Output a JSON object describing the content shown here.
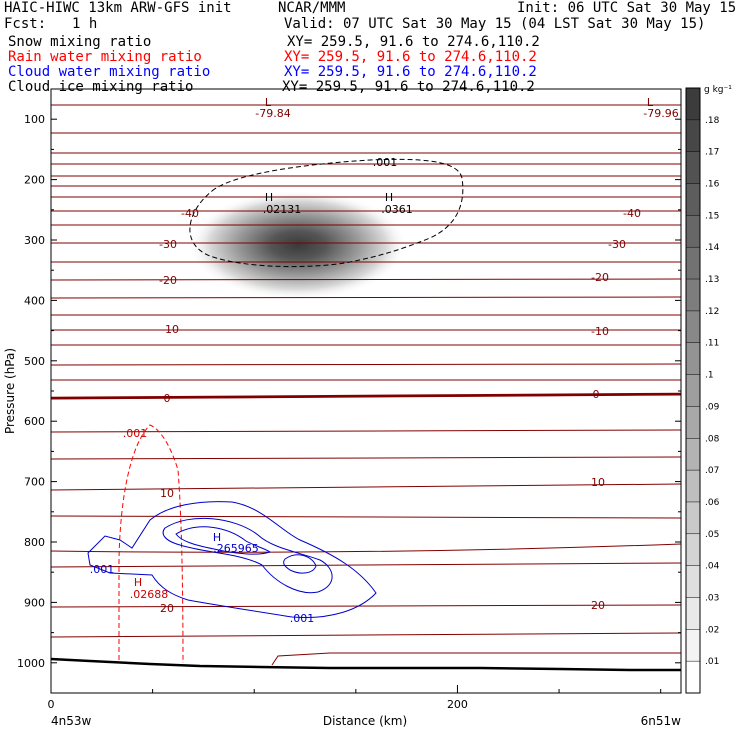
{
  "header": {
    "model": "HAIC-HIWC 13km ARW-GFS init",
    "org": "NCAR/MMM",
    "init": "Init: 06 UTC Sat 30 May 15",
    "fcst_label": "Fcst:",
    "fcst_value": "1 h",
    "valid": "Valid: 07 UTC Sat 30 May 15 (04 LST Sat 30 May 15)",
    "fields": [
      {
        "name": "Snow mixing ratio",
        "xy": "XY= 259.5, 91.6 to 274.6,110.2",
        "color": "#000000"
      },
      {
        "name": "Rain water mixing ratio",
        "xy": "XY= 259.5, 91.6 to 274.6,110.2",
        "color": "#ff0000"
      },
      {
        "name": "Cloud water mixing ratio",
        "xy": "XY= 259.5, 91.6 to 274.6,110.2",
        "color": "#0000ff"
      },
      {
        "name": "Cloud ice mixing ratio",
        "xy": "XY= 259.5, 91.6 to 274.6,110.2",
        "color": "#000000"
      }
    ]
  },
  "colorbar": {
    "unit": "g kg⁻¹",
    "ticks": [
      ".01",
      ".02",
      ".03",
      ".04",
      ".05",
      ".06",
      ".07",
      ".08",
      ".09",
      ".1",
      ".11",
      ".12",
      ".13",
      ".14",
      ".15",
      ".16",
      ".17",
      ".18"
    ]
  },
  "chart_data": {
    "type": "heatmap",
    "xlabel": "Distance (km)",
    "ylabel": "Pressure (hPa)",
    "x_ticks": [
      "0",
      "200"
    ],
    "y_ticks": [
      "100",
      "200",
      "300",
      "400",
      "500",
      "600",
      "700",
      "800",
      "900",
      "1000"
    ],
    "xlim": [
      0,
      310
    ],
    "ylim": [
      1050,
      50
    ],
    "y_scale": "linear",
    "left_label": "4n53w",
    "right_label": "6n51w",
    "temperature_labels": [
      "-40",
      "-30",
      "-20",
      "-10",
      "0",
      "10",
      "20"
    ],
    "snow_max_g_per_kg": 0.18,
    "highs": [
      {
        "label": "H",
        "value": ".02131",
        "color": "#000000"
      },
      {
        "label": "H",
        "value": ".0361",
        "color": "#000000"
      },
      {
        "label": "H",
        "value": ".265965",
        "color": "#0000cc"
      },
      {
        "label": "H",
        "value": ".02688",
        "color": "#cc0000"
      }
    ],
    "lows": [
      {
        "label": "L",
        "value": "-79.84",
        "color": "#800000"
      },
      {
        "label": "L",
        "value": "-79.96",
        "color": "#800000"
      }
    ],
    "contour_labels": [
      {
        "value": ".001",
        "color": "#000000"
      },
      {
        "value": ".001",
        "color": "#cc0000"
      },
      {
        "value": ".001",
        "color": "#0000cc"
      },
      {
        "value": ".001",
        "color": "#0000cc"
      }
    ],
    "colors": {
      "temperature": "#800000",
      "rain": "#ff0000",
      "cloud_water": "#0000cc",
      "snow_shade": "#333333",
      "terrain": "#000000"
    }
  }
}
